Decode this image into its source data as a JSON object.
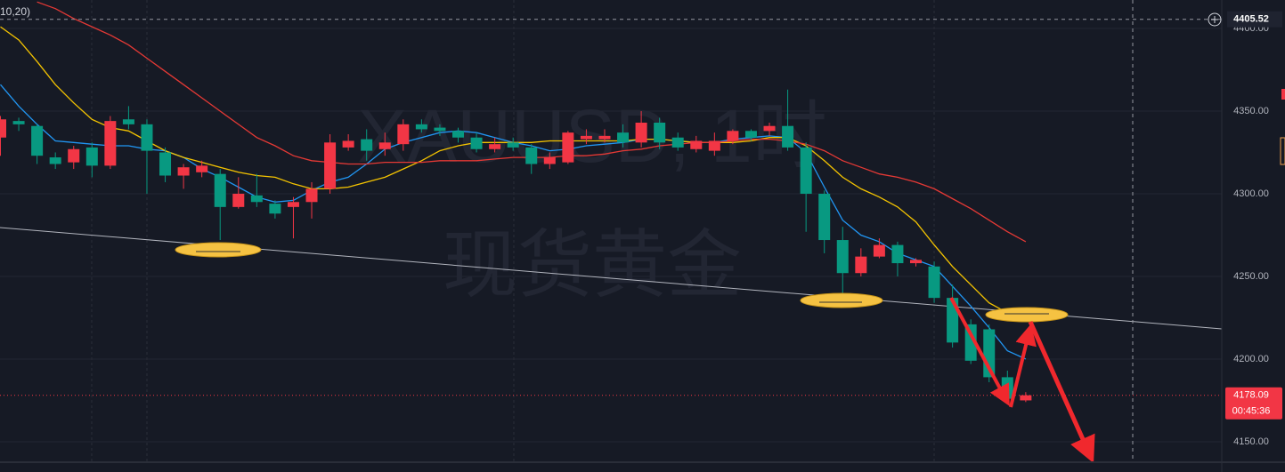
{
  "chart_data": {
    "type": "candlestick",
    "legend_text": "(10,20)",
    "watermark": [
      "XAUUSD, 1时",
      "现货黄金"
    ],
    "up_color": "#f23645",
    "down_color": "#089981",
    "open": [
      4334,
      4344,
      4341,
      4322,
      4319,
      4328,
      4317,
      4345,
      4342,
      4325,
      4311,
      4313,
      4312,
      4292,
      4299,
      4294,
      4292,
      4295,
      4303,
      4328,
      4333,
      4327,
      4330,
      4342,
      4340,
      4338,
      4334,
      4327,
      4331,
      4328,
      4318,
      4319,
      4333,
      4333,
      4337,
      4331,
      4343,
      4334,
      4327,
      4326,
      4332,
      4338,
      4338,
      4341,
      4328,
      4300,
      4272,
      4252,
      4262,
      4269,
      4258,
      4256,
      4237,
      4221,
      4218,
      4189,
      4175
    ],
    "high": [
      4347,
      4346,
      4342,
      4325,
      4329,
      4331,
      4347,
      4353,
      4345,
      4328,
      4318,
      4320,
      4315,
      4310,
      4312,
      4296,
      4298,
      4307,
      4336,
      4336,
      4339,
      4337,
      4345,
      4345,
      4342,
      4340,
      4337,
      4334,
      4334,
      4330,
      4325,
      4338,
      4339,
      4339,
      4342,
      4350,
      4346,
      4337,
      4335,
      4337,
      4339,
      4339,
      4343,
      4363,
      4331,
      4302,
      4280,
      4267,
      4273,
      4271,
      4261,
      4259,
      4245,
      4224,
      4221,
      4193,
      4180
    ],
    "low": [
      4323,
      4338,
      4318,
      4315,
      4315,
      4310,
      4315,
      4339,
      4300,
      4307,
      4303,
      4310,
      4272,
      4291,
      4292,
      4285,
      4273,
      4285,
      4300,
      4326,
      4320,
      4323,
      4326,
      4337,
      4335,
      4331,
      4325,
      4325,
      4326,
      4312,
      4315,
      4318,
      4330,
      4331,
      4328,
      4328,
      4327,
      4326,
      4325,
      4323,
      4330,
      4332,
      4335,
      4326,
      4277,
      4264,
      4240,
      4250,
      4261,
      4250,
      4256,
      4234,
      4207,
      4197,
      4186,
      4173,
      4174
    ],
    "close": [
      4345,
      4342,
      4323,
      4318,
      4327,
      4317,
      4344,
      4342,
      4326,
      4311,
      4316,
      4317,
      4292,
      4300,
      4295,
      4288,
      4295,
      4303,
      4331,
      4332,
      4326,
      4331,
      4342,
      4339,
      4338,
      4334,
      4327,
      4330,
      4328,
      4318,
      4322,
      4337,
      4335,
      4335,
      4331,
      4343,
      4331,
      4328,
      4332,
      4332,
      4338,
      4334,
      4341,
      4328,
      4300,
      4272,
      4252,
      4262,
      4269,
      4258,
      4260,
      4237,
      4210,
      4199,
      4189,
      4176,
      4178.09
    ],
    "series": [
      {
        "color": "#2196f3",
        "values": [
          4366,
          4353,
          4342,
          4332,
          4331,
          4330,
          4329,
          4329,
          4327,
          4326,
          4322,
          4315,
          4310,
          4304,
          4298,
          4295,
          4296,
          4302,
          4307,
          4310,
          4318,
          4327,
          4331,
          4334,
          4337,
          4338,
          4337,
          4334,
          4331,
          4329,
          4326,
          4327,
          4329,
          4330,
          4331,
          4333,
          4333,
          4332,
          4331,
          4331,
          4333,
          4334,
          4335,
          4334,
          4325,
          4304,
          4284,
          4275,
          4271,
          4264,
          4260,
          4256,
          4244,
          4232,
          4219,
          4205,
          4200
        ]
      },
      {
        "color": "#f5c400",
        "values": [
          4401,
          4393,
          4380,
          4366,
          4355,
          4345,
          4340,
          4338,
          4332,
          4326,
          4322,
          4319,
          4316,
          4313,
          4311,
          4310,
          4306,
          4303,
          4303,
          4304,
          4307,
          4310,
          4315,
          4320,
          4326,
          4329,
          4331,
          4331,
          4331,
          4331,
          4332,
          4332,
          4332,
          4332,
          4332,
          4333,
          4333,
          4332,
          4331,
          4331,
          4331,
          4332,
          4334,
          4334,
          4329,
          4320,
          4310,
          4303,
          4298,
          4292,
          4283,
          4269,
          4256,
          4245,
          4234,
          4228,
          4226
        ]
      },
      {
        "color": "#e53935",
        "values": [
          null,
          null,
          4416,
          4412,
          4406,
          4401,
          4396,
          4390,
          4382,
          4374,
          4366,
          4358,
          4350,
          4342,
          4334,
          4329,
          4323,
          4320,
          4319,
          4318,
          4318,
          4319,
          4319,
          4319,
          4320,
          4320,
          4320,
          4321,
          4322,
          4322,
          4322,
          4323,
          4323,
          4324,
          4326,
          4327,
          4329,
          4330,
          4331,
          4331,
          4332,
          4333,
          4333,
          4332,
          4330,
          4326,
          4320,
          4316,
          4312,
          4310,
          4307,
          4303,
          4297,
          4291,
          4284,
          4277,
          4271
        ]
      }
    ],
    "ylim": [
      4137.6,
      4417.2
    ],
    "yticks": [
      {
        "value": 4150,
        "label": "4150.00"
      },
      {
        "value": 4200,
        "label": "4200.00"
      },
      {
        "value": 4250,
        "label": "4250.00"
      },
      {
        "value": 4300,
        "label": "4300.00"
      },
      {
        "value": 4350,
        "label": "4350.00"
      },
      {
        "value": 4400,
        "label": "4400.00"
      }
    ],
    "grid": true,
    "crosshair": 4405.52,
    "last_price": 4178.09,
    "countdown": "00:45:36"
  }
}
